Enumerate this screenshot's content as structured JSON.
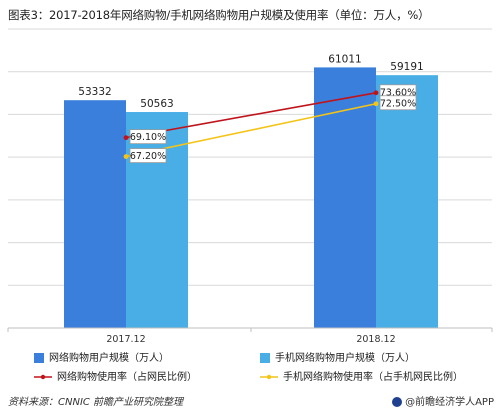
{
  "title": "图表3：2017-2018年网络购物/手机网络购物用户规模及使用率（单位：万人，%）",
  "chart_data": {
    "type": "bar",
    "categories": [
      "2017.12",
      "2018.12"
    ],
    "ylim_left": [
      0,
      70000
    ],
    "ylim_right": [
      0.5,
      0.8
    ],
    "bar_series": [
      {
        "name": "网络购物用户规模（万人）",
        "values": [
          53332,
          61011
        ],
        "labels": [
          "53332",
          "61011"
        ],
        "color": "#3b7fdc"
      },
      {
        "name": "手机网络购物用户规模（万人）",
        "values": [
          50563,
          59191
        ],
        "labels": [
          "50563",
          "59191"
        ],
        "color": "#4aaee6"
      }
    ],
    "line_series": [
      {
        "name": "网络购物使用率（占网民比例）",
        "values": [
          0.691,
          0.736
        ],
        "labels": [
          "69.10%",
          "73.60%"
        ],
        "color": "#c0141c"
      },
      {
        "name": "手机网络购物使用率（占手机网民比例）",
        "values": [
          0.672,
          0.725
        ],
        "labels": [
          "67.20%",
          "72.50%"
        ],
        "color": "#f4c418"
      }
    ],
    "grid": true
  },
  "footer": {
    "source": "资料来源：CNNIC  前瞻产业研究院整理",
    "brand": "@前瞻经济学人APP"
  }
}
